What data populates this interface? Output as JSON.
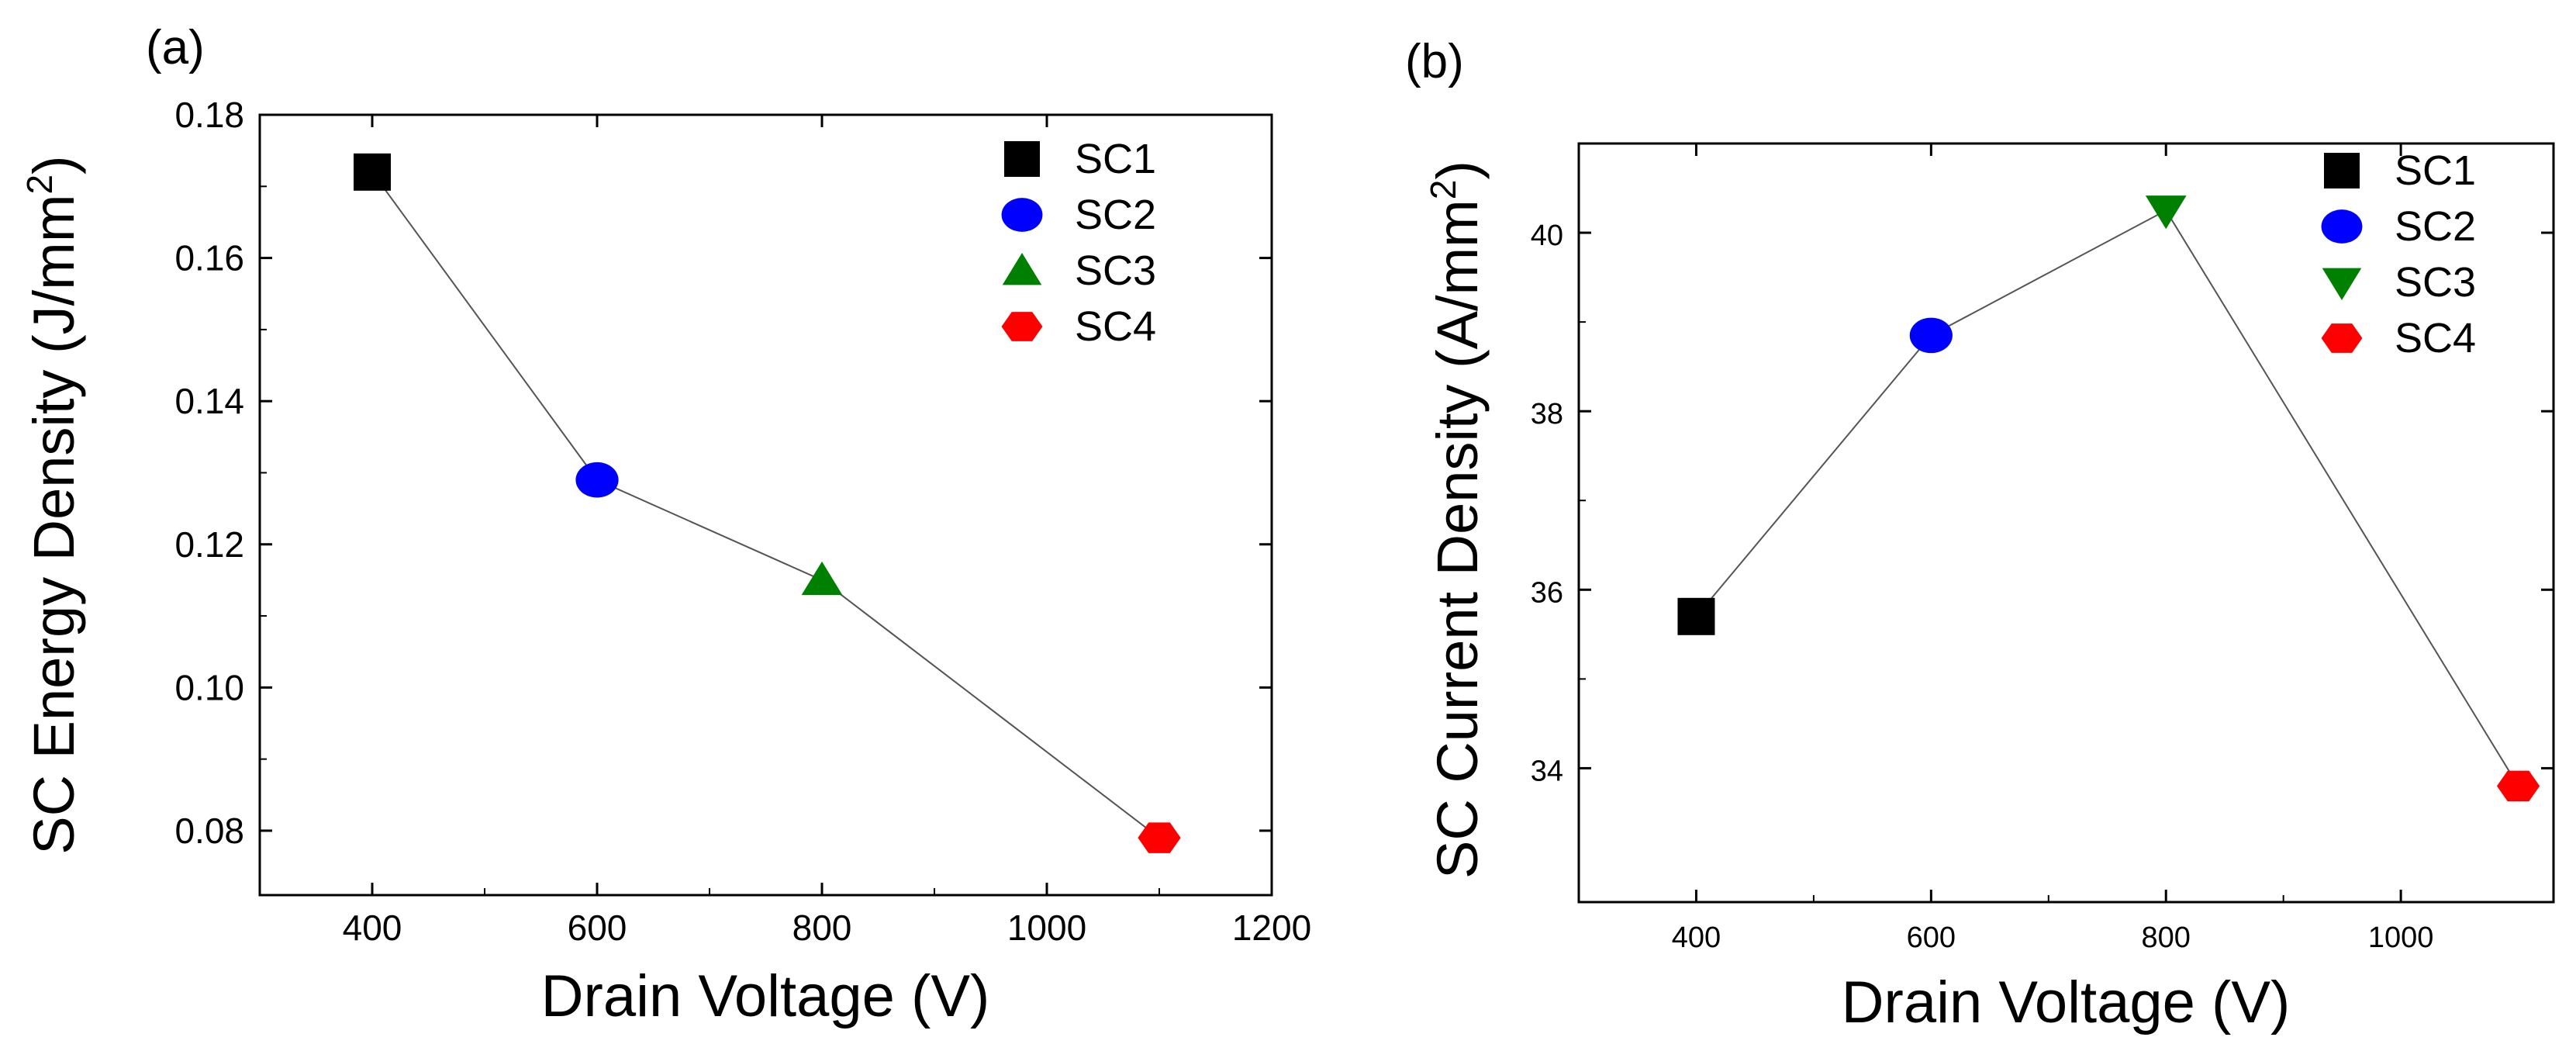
{
  "chart_data": [
    {
      "type": "line",
      "panel_label": "(a)",
      "xlabel": "Drain Voltage (V)",
      "ylabel": "SC Energy Density (J/mm",
      "ylabel_sup": "2",
      "ylabel_close": ")",
      "xlim": [
        300,
        1200
      ],
      "ylim": [
        0.071,
        0.18
      ],
      "xticks": [
        400,
        600,
        800,
        1000,
        1200
      ],
      "xtick_labels": [
        "400",
        "600",
        "800",
        "1000",
        "1200"
      ],
      "yticks": [
        0.08,
        0.1,
        0.12,
        0.14,
        0.16,
        0.18
      ],
      "ytick_labels": [
        "0.08",
        "0.10",
        "0.12",
        "0.14",
        "0.16",
        "0.18"
      ],
      "legend_position": "top-right",
      "series": [
        {
          "name": "SC1",
          "x": 400,
          "y": 0.172,
          "marker": "square",
          "color": "#000000"
        },
        {
          "name": "SC2",
          "x": 600,
          "y": 0.129,
          "marker": "circle",
          "color": "#0000ff"
        },
        {
          "name": "SC3",
          "x": 800,
          "y": 0.115,
          "marker": "triangle-up",
          "color": "#008000"
        },
        {
          "name": "SC4",
          "x": 1100,
          "y": 0.079,
          "marker": "hexagon",
          "color": "#ff0000"
        }
      ]
    },
    {
      "type": "line",
      "panel_label": "(b)",
      "xlabel": "Drain Voltage (V)",
      "ylabel": "SC Current Density (A/mm",
      "ylabel_sup": "2",
      "ylabel_close": ")",
      "xlim": [
        300,
        1130
      ],
      "ylim": [
        32.5,
        41.0
      ],
      "xticks": [
        400,
        600,
        800,
        1000
      ],
      "xtick_labels": [
        "400",
        "600",
        "800",
        "1000"
      ],
      "yticks": [
        34,
        36,
        38,
        40
      ],
      "ytick_labels": [
        "34",
        "36",
        "38",
        "40"
      ],
      "legend_position": "top-right",
      "series": [
        {
          "name": "SC1",
          "x": 400,
          "y": 35.7,
          "marker": "square",
          "color": "#000000"
        },
        {
          "name": "SC2",
          "x": 600,
          "y": 38.85,
          "marker": "circle",
          "color": "#0000ff"
        },
        {
          "name": "SC3",
          "x": 800,
          "y": 40.25,
          "marker": "triangle-down",
          "color": "#008000"
        },
        {
          "name": "SC4",
          "x": 1100,
          "y": 33.8,
          "marker": "hexagon",
          "color": "#ff0000"
        }
      ]
    }
  ]
}
